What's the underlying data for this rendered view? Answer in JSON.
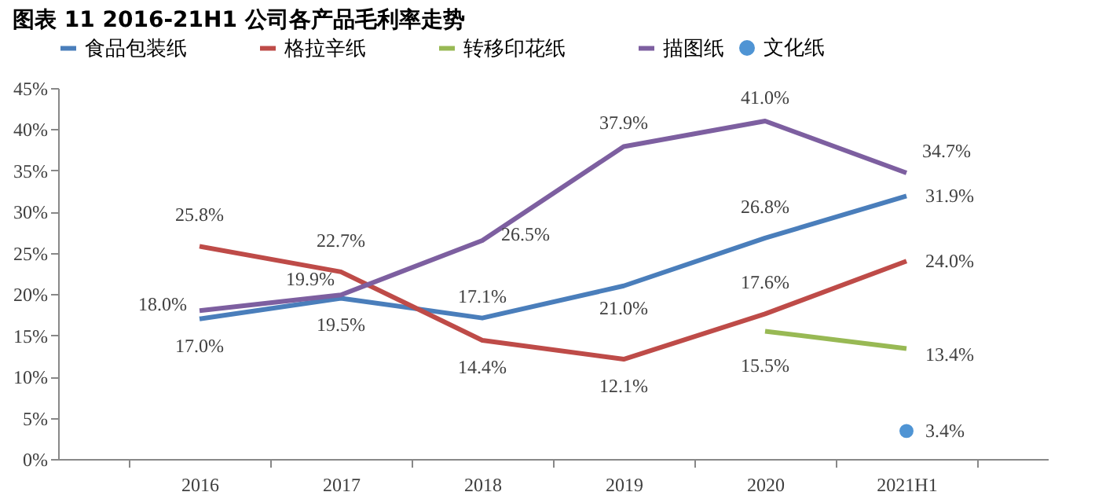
{
  "chart_data": {
    "type": "line",
    "title": "图表 11 2016-21H1 公司各产品毛利率走势",
    "categories": [
      "2016",
      "2017",
      "2018",
      "2019",
      "2020",
      "2021H1"
    ],
    "series": [
      {
        "name": "食品包装纸",
        "color": "#4a7ebb",
        "values": [
          17.0,
          19.5,
          17.1,
          21.0,
          26.8,
          31.9
        ],
        "value_labels": [
          "17.0%",
          "19.5%",
          "17.1%",
          "21.0%",
          "26.8%",
          "31.9%"
        ]
      },
      {
        "name": "格拉辛纸",
        "color": "#be4b48",
        "values": [
          25.8,
          22.7,
          14.4,
          12.1,
          17.6,
          24.0
        ],
        "value_labels": [
          "25.8%",
          "22.7%",
          "14.4%",
          "12.1%",
          "17.6%",
          "24.0%"
        ]
      },
      {
        "name": "转移印花纸",
        "color": "#98b954",
        "values": [
          null,
          null,
          null,
          null,
          15.5,
          13.4
        ],
        "value_labels": [
          null,
          null,
          null,
          null,
          "15.5%",
          "13.4%"
        ]
      },
      {
        "name": "描图纸",
        "color": "#7d5fa0",
        "values": [
          18.0,
          19.9,
          26.5,
          37.9,
          41.0,
          34.7
        ],
        "value_labels": [
          "18.0%",
          "19.9%",
          "26.5%",
          "37.9%",
          "41.0%",
          "34.7%"
        ]
      },
      {
        "name": "文化纸",
        "type": "scatter",
        "color": "#4f94d4",
        "values": [
          null,
          null,
          null,
          null,
          null,
          3.4
        ],
        "value_labels": [
          null,
          null,
          null,
          null,
          null,
          "3.4%"
        ]
      }
    ],
    "ylim": [
      0,
      45
    ],
    "yticks": [
      {
        "value": 0,
        "label": "0%"
      },
      {
        "value": 5,
        "label": "5%"
      },
      {
        "value": 10,
        "label": "10%"
      },
      {
        "value": 15,
        "label": "15%"
      },
      {
        "value": 20,
        "label": "20%"
      },
      {
        "value": 25,
        "label": "25%"
      },
      {
        "value": 30,
        "label": "30%"
      },
      {
        "value": 35,
        "label": "35%"
      },
      {
        "value": 40,
        "label": "40%"
      },
      {
        "value": 45,
        "label": "45%"
      }
    ],
    "grid": false,
    "legend": "top"
  }
}
